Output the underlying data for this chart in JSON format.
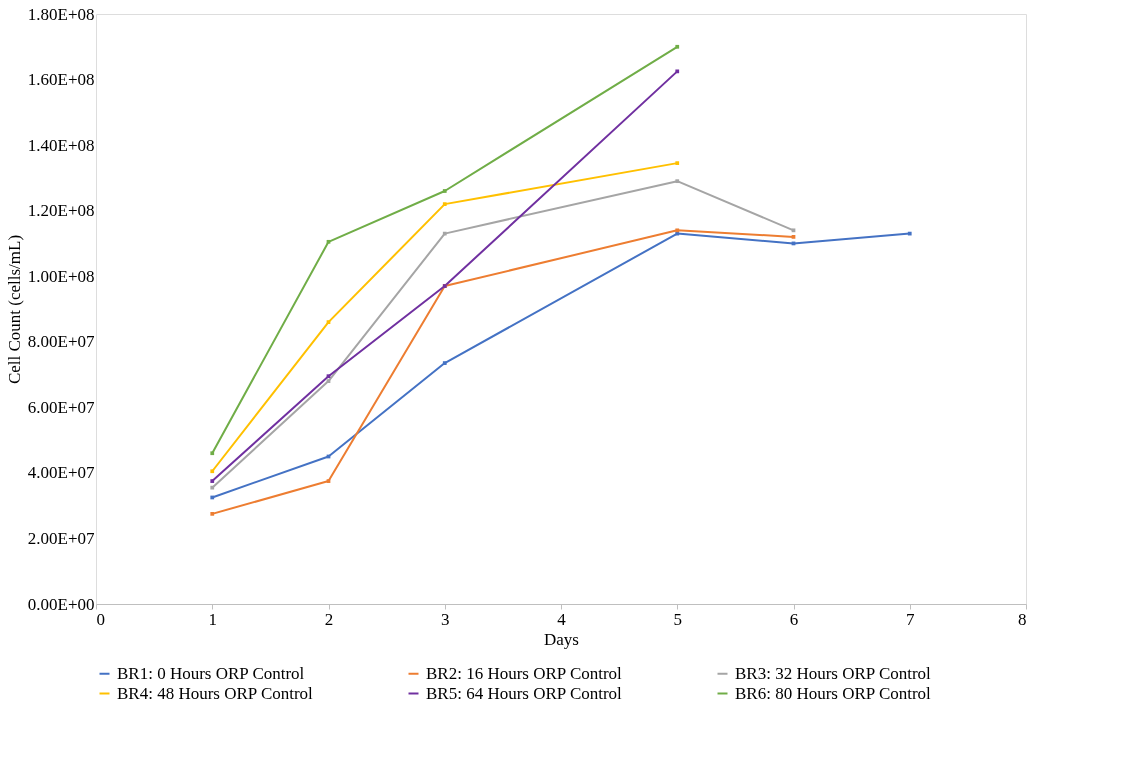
{
  "chart_data": {
    "type": "line",
    "xlabel": "Days",
    "ylabel": "Cell Count (cells/mL)",
    "xlim": [
      0,
      8
    ],
    "xticks": [
      0,
      1,
      2,
      3,
      4,
      5,
      6,
      7,
      8
    ],
    "ylim": [
      0,
      180000000
    ],
    "yticks": [
      {
        "value": 0,
        "label": "0.00E+00"
      },
      {
        "value": 20000000,
        "label": "2.00E+07"
      },
      {
        "value": 40000000,
        "label": "4.00E+07"
      },
      {
        "value": 60000000,
        "label": "6.00E+07"
      },
      {
        "value": 80000000,
        "label": "8.00E+07"
      },
      {
        "value": 100000000,
        "label": "1.00E+08"
      },
      {
        "value": 120000000,
        "label": "1.20E+08"
      },
      {
        "value": 140000000,
        "label": "1.40E+08"
      },
      {
        "value": 160000000,
        "label": "1.60E+08"
      },
      {
        "value": 180000000,
        "label": "1.80E+08"
      }
    ],
    "grid": false,
    "legend": "bottom",
    "marker": "square",
    "line_style": "solid",
    "series": [
      {
        "name": "BR1: 0 Hours ORP Control",
        "color": "#4472c4",
        "x": [
          1,
          2,
          3,
          5,
          6,
          7
        ],
        "values": [
          32500000,
          45000000,
          73500000,
          113000000,
          110000000,
          113000000
        ]
      },
      {
        "name": "BR2: 16 Hours ORP Control",
        "color": "#ed7d31",
        "x": [
          1,
          2,
          3,
          5,
          6
        ],
        "values": [
          27500000,
          37500000,
          97000000,
          114000000,
          112000000
        ]
      },
      {
        "name": "BR3: 32 Hours ORP Control",
        "color": "#a5a5a5",
        "x": [
          1,
          2,
          3,
          5,
          6
        ],
        "values": [
          35500000,
          68000000,
          113000000,
          129000000,
          114000000
        ]
      },
      {
        "name": "BR4: 48 Hours ORP Control",
        "color": "#ffc000",
        "x": [
          1,
          2,
          3,
          5
        ],
        "values": [
          40500000,
          86000000,
          122000000,
          134500000
        ]
      },
      {
        "name": "BR5: 64 Hours ORP Control",
        "color": "#7030a0",
        "x": [
          1,
          2,
          3,
          5
        ],
        "values": [
          37500000,
          69500000,
          97000000,
          162500000
        ]
      },
      {
        "name": "BR6: 80 Hours ORP Control",
        "color": "#70ad47",
        "x": [
          1,
          2,
          3,
          5
        ],
        "values": [
          46000000,
          110500000,
          126000000,
          170000000
        ]
      }
    ]
  }
}
